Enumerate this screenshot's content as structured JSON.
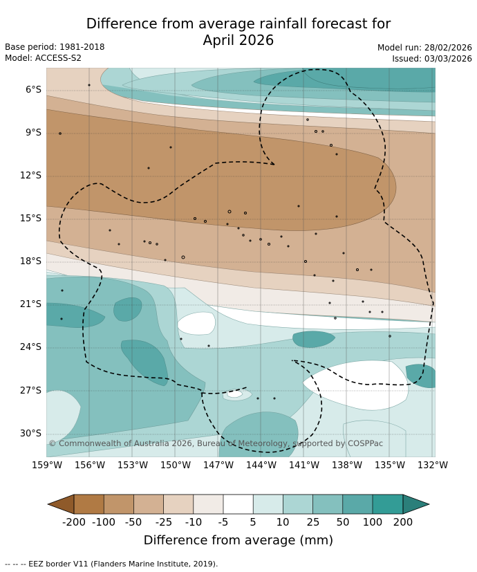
{
  "header": {
    "title_line1": "Difference from average rainfall forecast for",
    "title_line2": "April 2026",
    "base_period": "Base period: 1981-2018",
    "model": "Model: ACCESS-S2",
    "model_run": "Model run: 28/02/2026",
    "issued": "Issued: 03/03/2026"
  },
  "map": {
    "lat_labels": [
      "6°S",
      "9°S",
      "12°S",
      "15°S",
      "18°S",
      "21°S",
      "24°S",
      "27°S",
      "30°S"
    ],
    "lon_labels": [
      "159°W",
      "156°W",
      "153°W",
      "150°W",
      "147°W",
      "144°W",
      "141°W",
      "138°W",
      "135°W",
      "132°W"
    ],
    "copyright": "© Commonwealth of Australia 2026, Bureau of Meteorology, supported by COSPPac"
  },
  "colorbar": {
    "title": "Difference from average (mm)",
    "tick_labels": [
      "-200",
      "-100",
      "-50",
      "-25",
      "-10",
      "-5",
      "5",
      "10",
      "25",
      "50",
      "100",
      "200"
    ],
    "colors": [
      "#8f5a2a",
      "#b07a44",
      "#c1956a",
      "#d3b193",
      "#e6d2c0",
      "#f1ebe6",
      "#ffffff",
      "#d7ebea",
      "#acd6d4",
      "#84c0be",
      "#5aa9a8",
      "#339c96",
      "#2b7f7a"
    ]
  },
  "footnote": "-- -- -- EEZ border V11 (Flanders Marine Institute, 2019)."
}
